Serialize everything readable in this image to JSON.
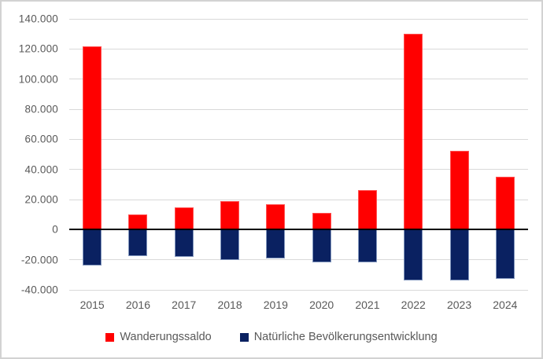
{
  "chart_data": {
    "type": "bar",
    "stacked": true,
    "title": "",
    "xlabel": "",
    "ylabel": "",
    "categories": [
      "2015",
      "2016",
      "2017",
      "2018",
      "2019",
      "2020",
      "2021",
      "2022",
      "2023",
      "2024"
    ],
    "series": [
      {
        "name": "Wanderungssaldo",
        "color": "#ff0000",
        "values": [
          122000,
          10000,
          15000,
          19000,
          17000,
          11000,
          26500,
          130000,
          52500,
          35000
        ]
      },
      {
        "name": "Natürliche Bevölkerungsentwicklung",
        "color": "#0a2161",
        "values": [
          -24000,
          -17500,
          -18000,
          -20000,
          -19000,
          -22000,
          -22000,
          -34000,
          -34000,
          -32500
        ]
      }
    ],
    "ylim": [
      -40000,
      140000
    ],
    "ytick_step": 20000,
    "ytick_labels": [
      "140.000",
      "120.000",
      "100.000",
      "80.000",
      "60.000",
      "40.000",
      "20.000",
      "0",
      "-20.000",
      "-40.000"
    ],
    "number_format": "de-thousands-dot",
    "grid": true,
    "gridline_color": "#d9d9d9",
    "zero_axis_color": "#000000",
    "axis_text_color": "#595959",
    "legend_position": "bottom"
  }
}
